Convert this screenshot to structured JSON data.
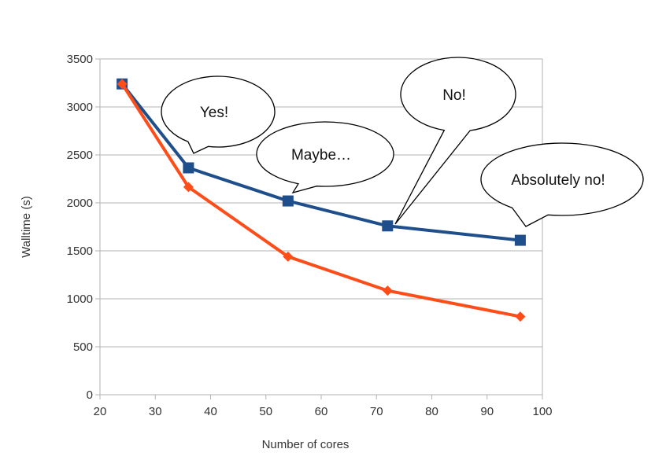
{
  "chart_data": {
    "type": "line",
    "xlabel": "Number of cores",
    "ylabel": "Walltime (s)",
    "xlim": [
      20,
      100
    ],
    "ylim": [
      0,
      3500
    ],
    "xticks": [
      20,
      30,
      40,
      50,
      60,
      70,
      80,
      90,
      100
    ],
    "yticks": [
      0,
      500,
      1000,
      1500,
      2000,
      2500,
      3000,
      3500
    ],
    "grid": "horizontal",
    "series": [
      {
        "marker": "square",
        "color": "#1f4e8c",
        "x": [
          24,
          36,
          54,
          72,
          96
        ],
        "y": [
          3240,
          2365,
          2020,
          1760,
          1610
        ]
      },
      {
        "marker": "diamond",
        "color": "#ff4d1a",
        "x": [
          24,
          36,
          54,
          72,
          96
        ],
        "y": [
          3240,
          2165,
          1440,
          1085,
          815
        ]
      }
    ],
    "annotations": [
      {
        "text": "Yes!",
        "point": [
          36,
          2365
        ]
      },
      {
        "text": "Maybe…",
        "point": [
          54,
          2020
        ]
      },
      {
        "text": "No!",
        "point": [
          72,
          1760
        ]
      },
      {
        "text": "Absolutely no!",
        "point": [
          96,
          1610
        ]
      }
    ]
  }
}
